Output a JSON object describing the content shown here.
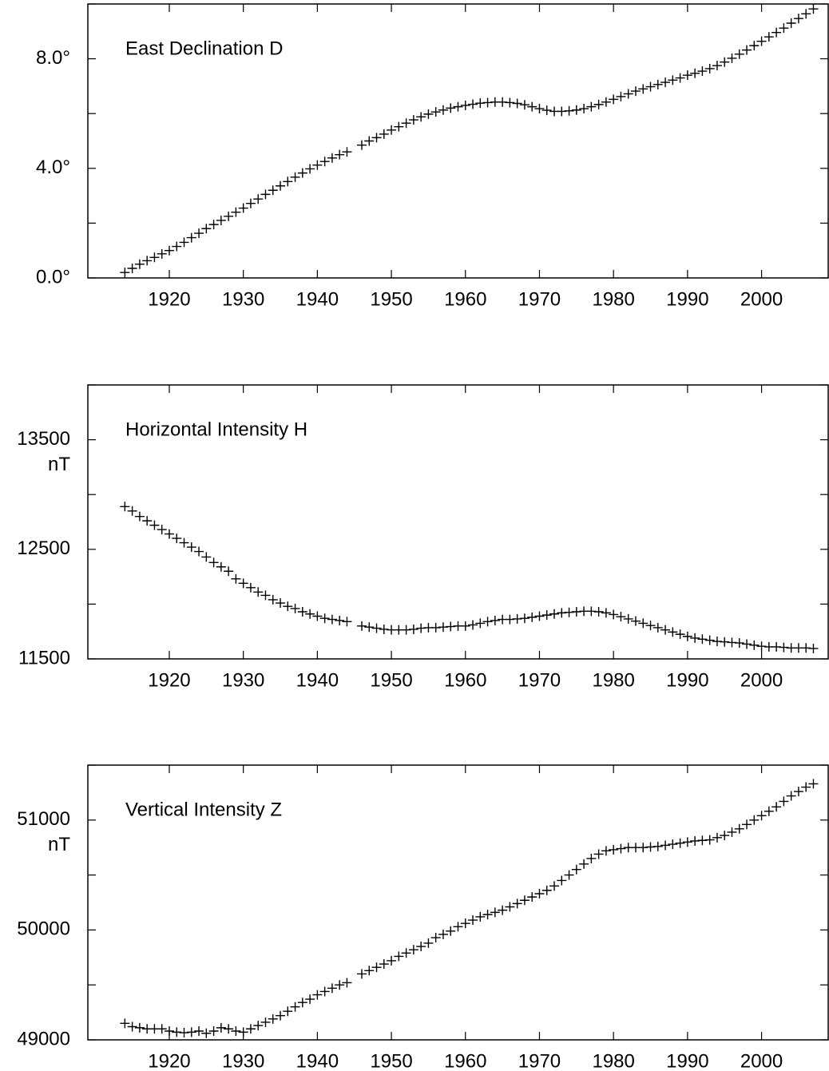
{
  "chart_data": [
    {
      "type": "scatter",
      "title": "East Declination D",
      "marker": "+",
      "color": "#000000",
      "xlim": [
        1909,
        2009
      ],
      "xticks": [
        1920,
        1930,
        1940,
        1950,
        1960,
        1970,
        1980,
        1990,
        2000
      ],
      "ylim": [
        0,
        10
      ],
      "yticks": [
        {
          "value": 0,
          "label": "0.0°"
        },
        {
          "value": 4,
          "label": "4.0°"
        },
        {
          "value": 8,
          "label": "8.0°"
        }
      ],
      "yminorticks": [
        2,
        6,
        10
      ],
      "x": [
        1914,
        1915,
        1916,
        1917,
        1918,
        1919,
        1920,
        1921,
        1922,
        1923,
        1924,
        1925,
        1926,
        1927,
        1928,
        1929,
        1930,
        1931,
        1932,
        1933,
        1934,
        1935,
        1936,
        1937,
        1938,
        1939,
        1940,
        1941,
        1942,
        1943,
        1944,
        1946,
        1947,
        1948,
        1949,
        1950,
        1951,
        1952,
        1953,
        1954,
        1955,
        1956,
        1957,
        1958,
        1959,
        1960,
        1961,
        1962,
        1963,
        1964,
        1965,
        1966,
        1967,
        1968,
        1969,
        1970,
        1971,
        1972,
        1973,
        1974,
        1975,
        1976,
        1977,
        1978,
        1979,
        1980,
        1981,
        1982,
        1983,
        1984,
        1985,
        1986,
        1987,
        1988,
        1989,
        1990,
        1991,
        1992,
        1993,
        1994,
        1995,
        1996,
        1997,
        1998,
        1999,
        2000,
        2001,
        2002,
        2003,
        2004,
        2005,
        2006,
        2007
      ],
      "values": [
        0.2,
        0.35,
        0.5,
        0.63,
        0.75,
        0.88,
        1.0,
        1.15,
        1.3,
        1.47,
        1.63,
        1.8,
        1.95,
        2.1,
        2.25,
        2.4,
        2.55,
        2.72,
        2.88,
        3.05,
        3.2,
        3.36,
        3.52,
        3.68,
        3.83,
        3.98,
        4.12,
        4.25,
        4.38,
        4.5,
        4.6,
        4.85,
        5.0,
        5.12,
        5.25,
        5.4,
        5.52,
        5.65,
        5.77,
        5.88,
        5.98,
        6.06,
        6.13,
        6.2,
        6.25,
        6.3,
        6.34,
        6.38,
        6.4,
        6.42,
        6.42,
        6.4,
        6.37,
        6.32,
        6.25,
        6.18,
        6.12,
        6.08,
        6.08,
        6.1,
        6.13,
        6.18,
        6.25,
        6.33,
        6.42,
        6.52,
        6.62,
        6.72,
        6.82,
        6.9,
        6.98,
        7.06,
        7.14,
        7.22,
        7.3,
        7.4,
        7.47,
        7.55,
        7.64,
        7.75,
        7.88,
        8.02,
        8.17,
        8.32,
        8.48,
        8.64,
        8.8,
        8.96,
        9.12,
        9.3,
        9.47,
        9.64,
        9.82
      ]
    },
    {
      "type": "scatter",
      "title": "Horizontal Intensity H",
      "unit": "nT",
      "marker": "+",
      "color": "#000000",
      "xlim": [
        1909,
        2009
      ],
      "xticks": [
        1920,
        1930,
        1940,
        1950,
        1960,
        1970,
        1980,
        1990,
        2000
      ],
      "ylim": [
        11500,
        14000
      ],
      "yticks": [
        11500,
        12500,
        13500
      ],
      "yminorticks": [
        12000,
        13000,
        14000
      ],
      "x": [
        1914,
        1915,
        1916,
        1917,
        1918,
        1919,
        1920,
        1921,
        1922,
        1923,
        1924,
        1925,
        1926,
        1927,
        1928,
        1929,
        1930,
        1931,
        1932,
        1933,
        1934,
        1935,
        1936,
        1937,
        1938,
        1939,
        1940,
        1941,
        1942,
        1943,
        1944,
        1946,
        1947,
        1948,
        1949,
        1950,
        1951,
        1952,
        1953,
        1954,
        1955,
        1956,
        1957,
        1958,
        1959,
        1960,
        1961,
        1962,
        1963,
        1964,
        1965,
        1966,
        1967,
        1968,
        1969,
        1970,
        1971,
        1972,
        1973,
        1974,
        1975,
        1976,
        1977,
        1978,
        1979,
        1980,
        1981,
        1982,
        1983,
        1984,
        1985,
        1986,
        1987,
        1988,
        1989,
        1990,
        1991,
        1992,
        1993,
        1994,
        1995,
        1996,
        1997,
        1998,
        1999,
        2000,
        2001,
        2002,
        2003,
        2004,
        2005,
        2006,
        2007
      ],
      "values": [
        12890,
        12850,
        12800,
        12760,
        12720,
        12680,
        12640,
        12600,
        12560,
        12520,
        12480,
        12430,
        12380,
        12340,
        12300,
        12230,
        12190,
        12150,
        12110,
        12080,
        12040,
        12010,
        11980,
        11960,
        11930,
        11910,
        11890,
        11870,
        11860,
        11850,
        11840,
        11800,
        11790,
        11780,
        11770,
        11765,
        11765,
        11765,
        11770,
        11780,
        11785,
        11785,
        11790,
        11795,
        11800,
        11800,
        11810,
        11825,
        11840,
        11850,
        11860,
        11860,
        11865,
        11870,
        11880,
        11890,
        11900,
        11910,
        11920,
        11925,
        11930,
        11935,
        11935,
        11930,
        11920,
        11905,
        11885,
        11865,
        11845,
        11825,
        11805,
        11785,
        11765,
        11745,
        11725,
        11705,
        11690,
        11680,
        11670,
        11660,
        11655,
        11650,
        11645,
        11635,
        11625,
        11615,
        11610,
        11610,
        11605,
        11600,
        11600,
        11600,
        11595
      ]
    },
    {
      "type": "scatter",
      "title": "Vertical Intensity Z",
      "unit": "nT",
      "marker": "+",
      "color": "#000000",
      "xlim": [
        1909,
        2009
      ],
      "xticks": [
        1920,
        1930,
        1940,
        1950,
        1960,
        1970,
        1980,
        1990,
        2000
      ],
      "ylim": [
        49000,
        51500
      ],
      "yticks": [
        49000,
        50000,
        51000
      ],
      "yminorticks": [
        49500,
        50500,
        51500
      ],
      "x": [
        1914,
        1915,
        1916,
        1917,
        1918,
        1919,
        1920,
        1921,
        1922,
        1923,
        1924,
        1925,
        1926,
        1927,
        1928,
        1929,
        1930,
        1931,
        1932,
        1933,
        1934,
        1935,
        1936,
        1937,
        1938,
        1939,
        1940,
        1941,
        1942,
        1943,
        1944,
        1946,
        1947,
        1948,
        1949,
        1950,
        1951,
        1952,
        1953,
        1954,
        1955,
        1956,
        1957,
        1958,
        1959,
        1960,
        1961,
        1962,
        1963,
        1964,
        1965,
        1966,
        1967,
        1968,
        1969,
        1970,
        1971,
        1972,
        1973,
        1974,
        1975,
        1976,
        1977,
        1978,
        1979,
        1980,
        1981,
        1982,
        1983,
        1984,
        1985,
        1986,
        1987,
        1988,
        1989,
        1990,
        1991,
        1992,
        1993,
        1994,
        1995,
        1996,
        1997,
        1998,
        1999,
        2000,
        2001,
        2002,
        2003,
        2004,
        2005,
        2006,
        2007
      ],
      "values": [
        49150,
        49120,
        49110,
        49100,
        49100,
        49100,
        49080,
        49070,
        49065,
        49070,
        49080,
        49060,
        49080,
        49110,
        49100,
        49080,
        49070,
        49100,
        49130,
        49160,
        49190,
        49220,
        49260,
        49300,
        49340,
        49370,
        49410,
        49440,
        49470,
        49500,
        49520,
        49600,
        49630,
        49660,
        49690,
        49720,
        49760,
        49790,
        49820,
        49850,
        49880,
        49930,
        49960,
        49990,
        50030,
        50060,
        50090,
        50120,
        50140,
        50160,
        50180,
        50210,
        50240,
        50270,
        50300,
        50330,
        50360,
        50400,
        50450,
        50500,
        50550,
        50600,
        50650,
        50690,
        50720,
        50730,
        50740,
        50750,
        50750,
        50750,
        50755,
        50760,
        50770,
        50780,
        50790,
        50800,
        50810,
        50815,
        50820,
        50840,
        50860,
        50890,
        50920,
        50960,
        51000,
        51040,
        51080,
        51120,
        51170,
        51220,
        51260,
        51300,
        51330
      ]
    }
  ]
}
